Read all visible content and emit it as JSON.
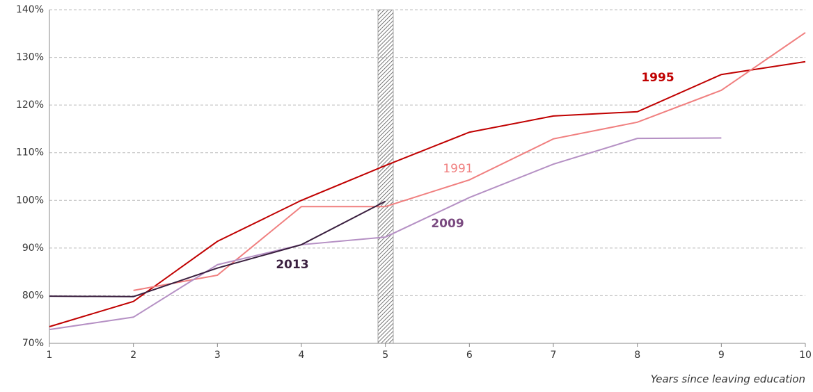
{
  "chart_data": {
    "type": "line",
    "x_label": "Years since leaving education",
    "x": [
      1,
      2,
      3,
      4,
      5,
      6,
      7,
      8,
      9,
      10
    ],
    "series": [
      {
        "name": "1995",
        "color": "#c00000",
        "values": [
          73.5,
          78.8,
          91.4,
          100,
          107.3,
          114.3,
          117.7,
          118.6,
          126.4,
          129.1
        ]
      },
      {
        "name": "1991",
        "color": "#f07f7f",
        "values": [
          null,
          81.1,
          84.3,
          98.7,
          98.7,
          104.3,
          112.9,
          116.4,
          123.1,
          135.2
        ]
      },
      {
        "name": "2009",
        "color": "#b590c4",
        "values": [
          72.9,
          75.5,
          86.5,
          90.7,
          92.3,
          100.6,
          107.6,
          113.0,
          113.1,
          null
        ]
      },
      {
        "name": "2013",
        "color": "#3a1f3f",
        "values": [
          79.9,
          79.8,
          85.8,
          90.7,
          99.8,
          null,
          null,
          null,
          null,
          null
        ]
      }
    ],
    "xlim": [
      1,
      10
    ],
    "xticks": [
      1,
      2,
      3,
      4,
      5,
      6,
      7,
      8,
      9,
      10
    ],
    "ylim": [
      70,
      140
    ],
    "yticks": [
      {
        "value": 70,
        "label": "70%"
      },
      {
        "value": 80,
        "label": "80%"
      },
      {
        "value": 90,
        "label": "90%"
      },
      {
        "value": 100,
        "label": "100%"
      },
      {
        "value": 110,
        "label": "110%"
      },
      {
        "value": 120,
        "label": "120%"
      },
      {
        "value": 130,
        "label": "130%"
      },
      {
        "value": 140,
        "label": "140%"
      }
    ],
    "grid": true
  }
}
